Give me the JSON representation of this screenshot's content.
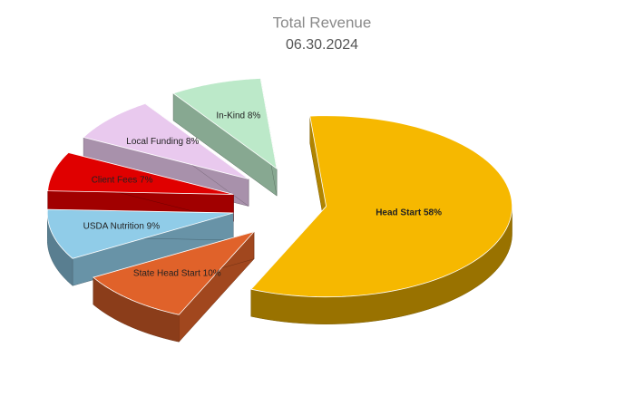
{
  "chart_data": {
    "type": "pie3d",
    "title": "Total Revenue",
    "subtitle": "06.30.2024",
    "values": [
      58,
      10,
      9,
      7,
      8,
      8
    ],
    "value_labels": [
      "Head Start 58%",
      "State Head Start 10%",
      "USDA Nutrition 9%",
      "Client Fees 7%",
      "Local Funding 8%",
      "In-Kind 8%"
    ],
    "colors": [
      "#f6b800",
      "#e0622a",
      "#90cce8",
      "#e00000",
      "#e9c9ee",
      "#bce9c9"
    ]
  }
}
